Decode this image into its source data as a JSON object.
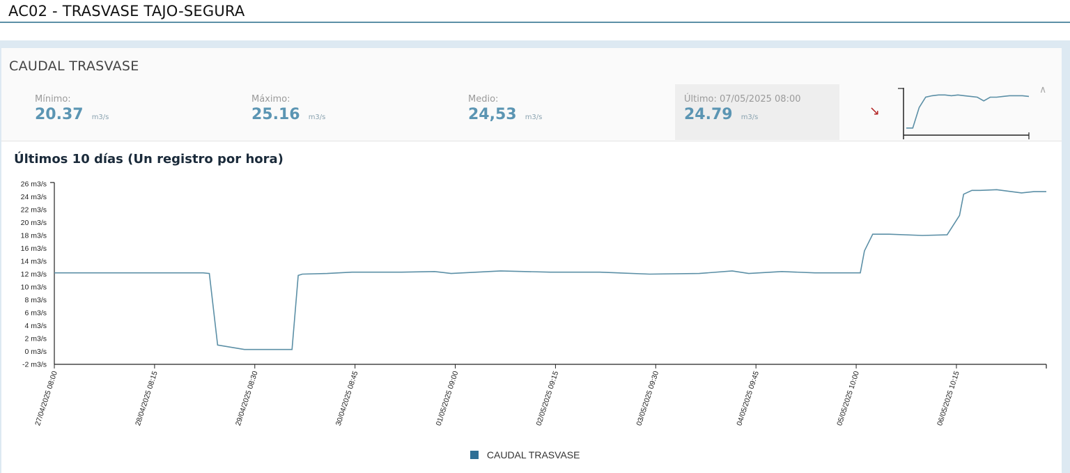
{
  "page": {
    "title": "AC02 - TRASVASE TAJO-SEGURA"
  },
  "panel": {
    "title": "CAUDAL TRASVASE",
    "stats": {
      "min": {
        "label": "Mínimo:",
        "value": "20.37",
        "unit": "m3/s"
      },
      "max": {
        "label": "Máximo:",
        "value": "25.16",
        "unit": "m3/s"
      },
      "mean": {
        "label": "Medio:",
        "value": "24,53",
        "unit": "m3/s"
      },
      "last": {
        "label": "Último: 07/05/2025 08:00",
        "value": "24.79",
        "unit": "m3/s"
      }
    },
    "trend_icon": "arrow-down-right-icon",
    "collapse_icon": "chevron-up-icon",
    "sparkline_values": [
      20.4,
      20.4,
      23.2,
      24.6,
      24.8,
      24.9,
      24.9,
      24.8,
      24.9,
      24.8,
      24.7,
      24.6,
      24.1,
      24.6,
      24.6,
      24.7,
      24.8,
      24.8,
      24.8,
      24.7
    ]
  },
  "colors": {
    "line": "#5b8fa6",
    "legend": "#2e6f95",
    "value": "#5b95b3",
    "trend_down": "#b22222"
  },
  "chart_data": {
    "type": "line",
    "title": "Últimos 10 días (Un registro por hora)",
    "xlabel": "",
    "ylabel": "",
    "y_unit": "m3/s",
    "ylim": [
      -2,
      26
    ],
    "yticks": [
      "-2 m3/s",
      "0 m3/s",
      "2 m3/s",
      "4 m3/s",
      "6 m3/s",
      "8 m3/s",
      "10 m3/s",
      "12 m3/s",
      "14 m3/s",
      "16 m3/s",
      "18 m3/s",
      "20 m3/s",
      "22 m3/s",
      "24 m3/s",
      "26 m3/s"
    ],
    "xticks": [
      "27/04/2025 08:00",
      "28/04/2025 08:15",
      "29/04/2025 08:30",
      "30/04/2025 08:45",
      "01/05/2025 09:00",
      "02/05/2025 09:15",
      "03/05/2025 09:30",
      "04/05/2025 09:45",
      "05/05/2025 10:00",
      "06/05/2025 10:15"
    ],
    "xlim": [
      "27/04/2025 08:00",
      "07/05/2025 08:00"
    ],
    "grid": false,
    "legend": "bottom",
    "series": [
      {
        "name": "CAUDAL TRASVASE",
        "x": [
          "27/04/2025 08:00",
          "27/04/2025 20:00",
          "28/04/2025 08:00",
          "28/04/2025 20:00",
          "28/04/2025 21:30",
          "28/04/2025 23:30",
          "29/04/2025 06:00",
          "29/04/2025 14:00",
          "29/04/2025 17:30",
          "29/04/2025 19:00",
          "29/04/2025 20:00",
          "30/04/2025 02:00",
          "30/04/2025 08:00",
          "30/04/2025 20:00",
          "01/05/2025 04:00",
          "01/05/2025 08:00",
          "01/05/2025 20:00",
          "02/05/2025 08:00",
          "02/05/2025 20:00",
          "03/05/2025 08:00",
          "03/05/2025 20:00",
          "04/05/2025 04:00",
          "04/05/2025 08:00",
          "04/05/2025 16:00",
          "05/05/2025 00:00",
          "05/05/2025 08:00",
          "05/05/2025 11:00",
          "05/05/2025 12:00",
          "05/05/2025 14:00",
          "05/05/2025 18:00",
          "06/05/2025 02:00",
          "06/05/2025 08:00",
          "06/05/2025 11:00",
          "06/05/2025 12:00",
          "06/05/2025 14:00",
          "06/05/2025 16:00",
          "06/05/2025 20:00",
          "07/05/2025 02:00",
          "07/05/2025 05:00",
          "07/05/2025 08:00"
        ],
        "values": [
          12.2,
          12.2,
          12.2,
          12.2,
          12.1,
          1.0,
          0.3,
          0.3,
          0.3,
          11.8,
          12.0,
          12.1,
          12.3,
          12.3,
          12.4,
          12.1,
          12.5,
          12.3,
          12.3,
          12.0,
          12.1,
          12.5,
          12.1,
          12.4,
          12.2,
          12.2,
          12.2,
          15.6,
          18.2,
          18.2,
          18.0,
          18.1,
          21.1,
          24.4,
          25.0,
          25.0,
          25.1,
          24.6,
          24.8,
          24.8
        ]
      }
    ]
  }
}
